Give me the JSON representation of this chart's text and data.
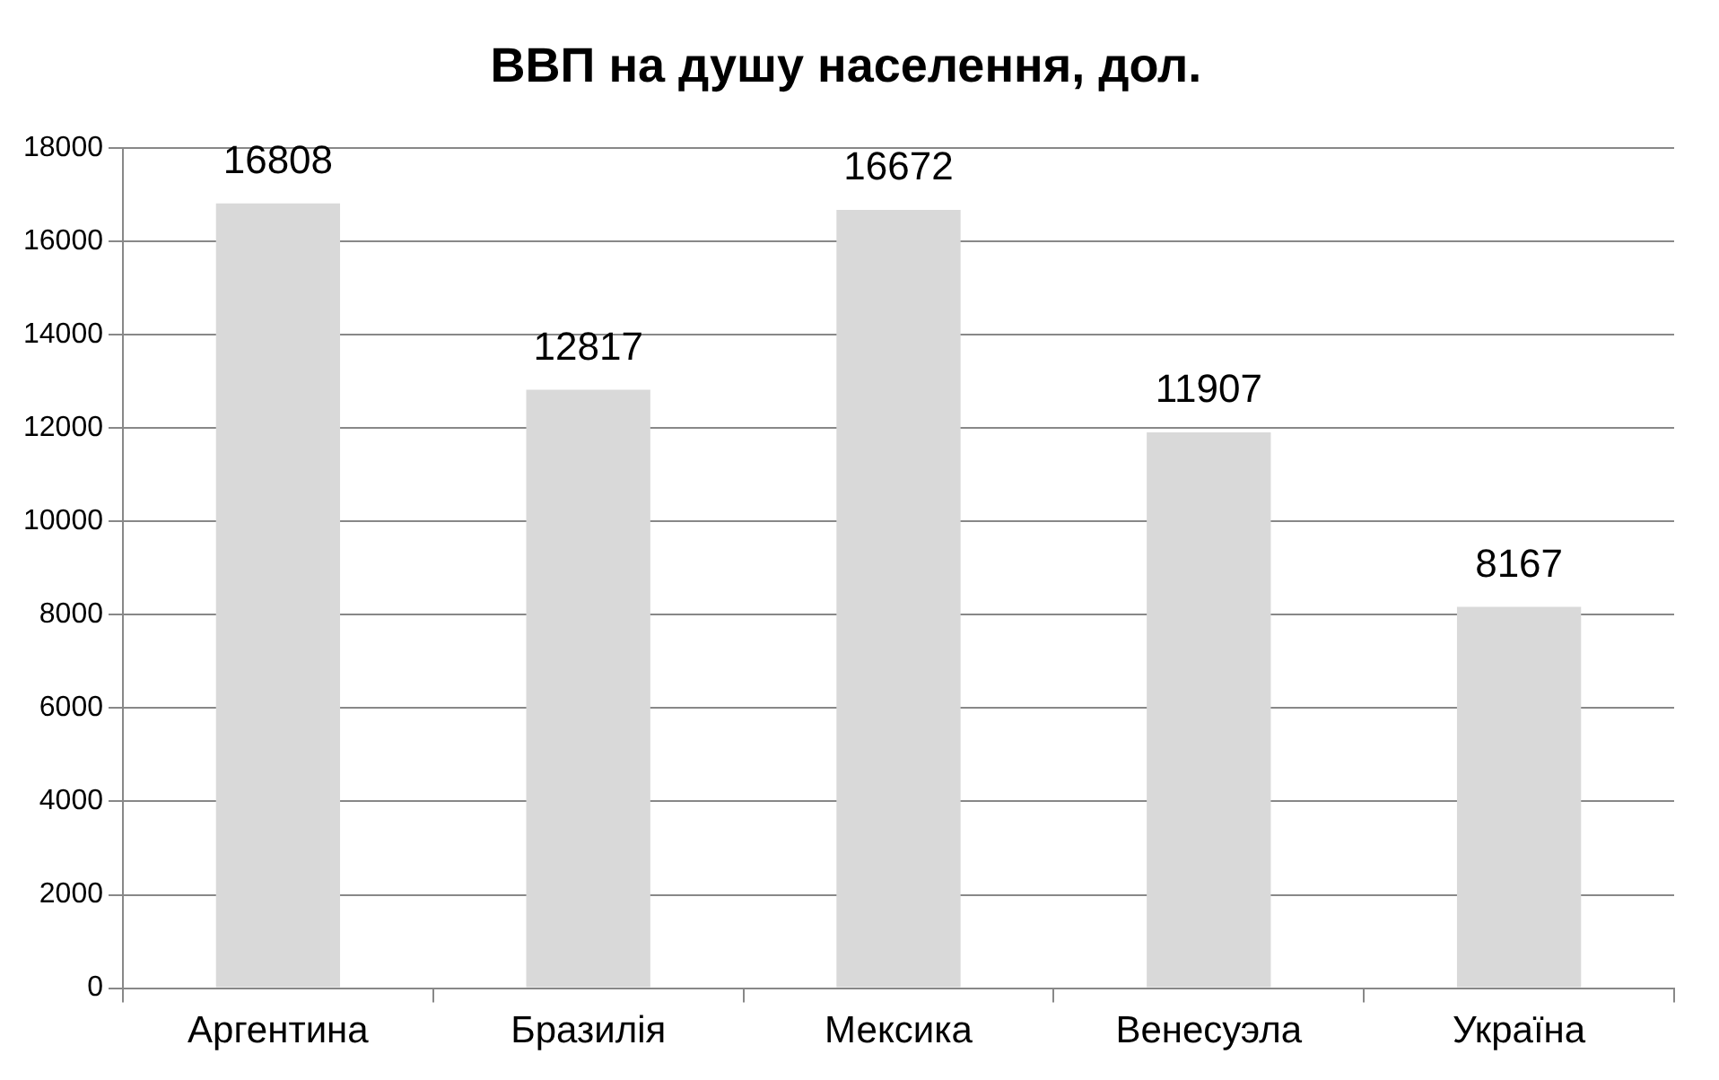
{
  "chart_data": {
    "type": "bar",
    "title": "ВВП на душу населення, дол.",
    "categories": [
      "Аргентина",
      "Бразилія",
      "Мексика",
      "Венесуэла",
      "Україна"
    ],
    "values": [
      16808,
      12817,
      16672,
      11907,
      8167
    ],
    "color": "#d9d9d9",
    "ylim": [
      0,
      18000
    ],
    "yticks": [
      0,
      2000,
      4000,
      6000,
      8000,
      10000,
      12000,
      14000,
      16000,
      18000
    ],
    "grid": "y",
    "data_labels": true
  }
}
